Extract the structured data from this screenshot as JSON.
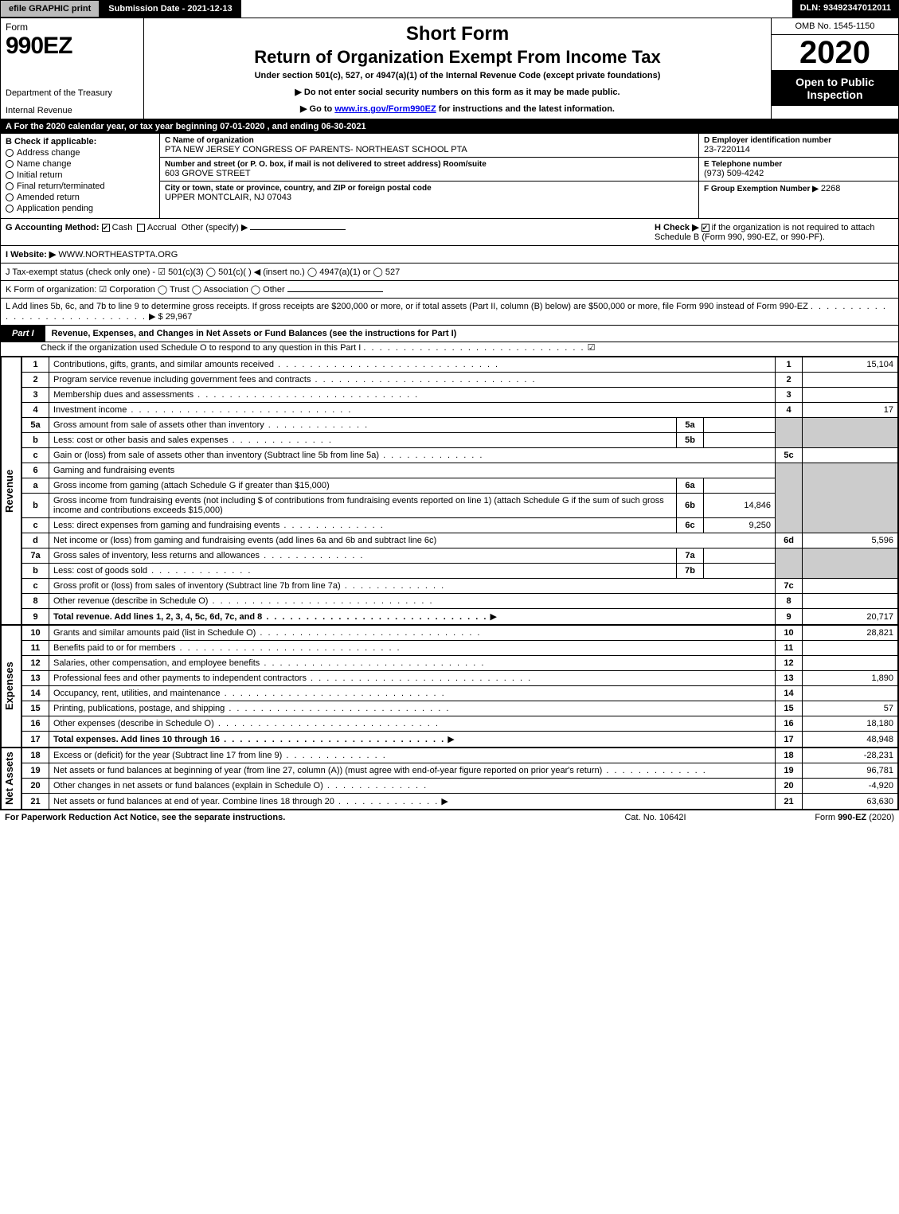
{
  "topbar": {
    "efile": "efile GRAPHIC print",
    "submission": "Submission Date - 2021-12-13",
    "dln": "DLN: 93492347012011"
  },
  "header": {
    "form_word": "Form",
    "form_number": "990EZ",
    "dept1": "Department of the Treasury",
    "dept2": "Internal Revenue",
    "title_short": "Short Form",
    "title_main": "Return of Organization Exempt From Income Tax",
    "subtext": "Under section 501(c), 527, or 4947(a)(1) of the Internal Revenue Code (except private foundations)",
    "arrow1": "▶ Do not enter social security numbers on this form as it may be made public.",
    "arrow2_pre": "▶ Go to ",
    "arrow2_link": "www.irs.gov/Form990EZ",
    "arrow2_post": " for instructions and the latest information.",
    "omb": "OMB No. 1545-1150",
    "year": "2020",
    "open": "Open to Public Inspection"
  },
  "lineA": "A For the 2020 calendar year, or tax year beginning 07-01-2020 , and ending 06-30-2021",
  "boxB": {
    "header": "B  Check if applicable:",
    "items": [
      "Address change",
      "Name change",
      "Initial return",
      "Final return/terminated",
      "Amended return",
      "Application pending"
    ]
  },
  "boxC": {
    "name_cap": "C Name of organization",
    "name": "PTA NEW JERSEY CONGRESS OF PARENTS- NORTHEAST SCHOOL PTA",
    "addr_cap": "Number and street (or P. O. box, if mail is not delivered to street address)    Room/suite",
    "addr": "603 GROVE STREET",
    "city_cap": "City or town, state or province, country, and ZIP or foreign postal code",
    "city": "UPPER MONTCLAIR, NJ  07043"
  },
  "boxD": {
    "d_cap": "D Employer identification number",
    "d_val": "23-7220114",
    "e_cap": "E Telephone number",
    "e_val": "(973) 509-4242",
    "f_cap": "F Group Exemption Number  ▶",
    "f_val": "2268"
  },
  "lineG": {
    "label": "G Accounting Method:",
    "cash": "Cash",
    "accrual": "Accrual",
    "other": "Other (specify) ▶",
    "h_label": "H  Check ▶",
    "h_text": "if the organization is not required to attach Schedule B (Form 990, 990-EZ, or 990-PF)."
  },
  "lineI": {
    "label": "I Website: ▶",
    "value": "WWW.NORTHEASTPTA.ORG"
  },
  "lineJ": "J Tax-exempt status (check only one) - ☑ 501(c)(3)  ◯ 501(c)(  ) ◀ (insert no.)  ◯ 4947(a)(1) or  ◯ 527",
  "lineK": "K Form of organization:  ☑ Corporation  ◯ Trust  ◯ Association  ◯ Other",
  "lineL": {
    "text": "L Add lines 5b, 6c, and 7b to line 9 to determine gross receipts. If gross receipts are $200,000 or more, or if total assets (Part II, column (B) below) are $500,000 or more, file Form 990 instead of Form 990-EZ",
    "amount": "▶ $ 29,967"
  },
  "part1": {
    "tab": "Part I",
    "title": "Revenue, Expenses, and Changes in Net Assets or Fund Balances (see the instructions for Part I)",
    "sub": "Check if the organization used Schedule O to respond to any question in this Part I",
    "checked": "☑"
  },
  "sections": {
    "revenue": "Revenue",
    "expenses": "Expenses",
    "netassets": "Net Assets"
  },
  "rows": {
    "r1": {
      "n": "1",
      "d": "Contributions, gifts, grants, and similar amounts received",
      "rn": "1",
      "v": "15,104"
    },
    "r2": {
      "n": "2",
      "d": "Program service revenue including government fees and contracts",
      "rn": "2",
      "v": ""
    },
    "r3": {
      "n": "3",
      "d": "Membership dues and assessments",
      "rn": "3",
      "v": ""
    },
    "r4": {
      "n": "4",
      "d": "Investment income",
      "rn": "4",
      "v": "17"
    },
    "r5a": {
      "n": "5a",
      "d": "Gross amount from sale of assets other than inventory",
      "in": "5a",
      "iv": ""
    },
    "r5b": {
      "n": "b",
      "d": "Less: cost or other basis and sales expenses",
      "in": "5b",
      "iv": ""
    },
    "r5c": {
      "n": "c",
      "d": "Gain or (loss) from sale of assets other than inventory (Subtract line 5b from line 5a)",
      "rn": "5c",
      "v": ""
    },
    "r6": {
      "n": "6",
      "d": "Gaming and fundraising events"
    },
    "r6a": {
      "n": "a",
      "d": "Gross income from gaming (attach Schedule G if greater than $15,000)",
      "in": "6a",
      "iv": ""
    },
    "r6b": {
      "n": "b",
      "d": "Gross income from fundraising events (not including $              of contributions from fundraising events reported on line 1) (attach Schedule G if the sum of such gross income and contributions exceeds $15,000)",
      "in": "6b",
      "iv": "14,846"
    },
    "r6c": {
      "n": "c",
      "d": "Less: direct expenses from gaming and fundraising events",
      "in": "6c",
      "iv": "9,250"
    },
    "r6d": {
      "n": "d",
      "d": "Net income or (loss) from gaming and fundraising events (add lines 6a and 6b and subtract line 6c)",
      "rn": "6d",
      "v": "5,596"
    },
    "r7a": {
      "n": "7a",
      "d": "Gross sales of inventory, less returns and allowances",
      "in": "7a",
      "iv": ""
    },
    "r7b": {
      "n": "b",
      "d": "Less: cost of goods sold",
      "in": "7b",
      "iv": ""
    },
    "r7c": {
      "n": "c",
      "d": "Gross profit or (loss) from sales of inventory (Subtract line 7b from line 7a)",
      "rn": "7c",
      "v": ""
    },
    "r8": {
      "n": "8",
      "d": "Other revenue (describe in Schedule O)",
      "rn": "8",
      "v": ""
    },
    "r9": {
      "n": "9",
      "d": "Total revenue. Add lines 1, 2, 3, 4, 5c, 6d, 7c, and 8",
      "rn": "9",
      "v": "20,717",
      "arrow": "▶",
      "bold": true
    },
    "r10": {
      "n": "10",
      "d": "Grants and similar amounts paid (list in Schedule O)",
      "rn": "10",
      "v": "28,821"
    },
    "r11": {
      "n": "11",
      "d": "Benefits paid to or for members",
      "rn": "11",
      "v": ""
    },
    "r12": {
      "n": "12",
      "d": "Salaries, other compensation, and employee benefits",
      "rn": "12",
      "v": ""
    },
    "r13": {
      "n": "13",
      "d": "Professional fees and other payments to independent contractors",
      "rn": "13",
      "v": "1,890"
    },
    "r14": {
      "n": "14",
      "d": "Occupancy, rent, utilities, and maintenance",
      "rn": "14",
      "v": ""
    },
    "r15": {
      "n": "15",
      "d": "Printing, publications, postage, and shipping",
      "rn": "15",
      "v": "57"
    },
    "r16": {
      "n": "16",
      "d": "Other expenses (describe in Schedule O)",
      "rn": "16",
      "v": "18,180"
    },
    "r17": {
      "n": "17",
      "d": "Total expenses. Add lines 10 through 16",
      "rn": "17",
      "v": "48,948",
      "arrow": "▶",
      "bold": true
    },
    "r18": {
      "n": "18",
      "d": "Excess or (deficit) for the year (Subtract line 17 from line 9)",
      "rn": "18",
      "v": "-28,231"
    },
    "r19": {
      "n": "19",
      "d": "Net assets or fund balances at beginning of year (from line 27, column (A)) (must agree with end-of-year figure reported on prior year's return)",
      "rn": "19",
      "v": "96,781"
    },
    "r20": {
      "n": "20",
      "d": "Other changes in net assets or fund balances (explain in Schedule O)",
      "rn": "20",
      "v": "-4,920"
    },
    "r21": {
      "n": "21",
      "d": "Net assets or fund balances at end of year. Combine lines 18 through 20",
      "rn": "21",
      "v": "63,630",
      "arrow": "▶"
    }
  },
  "footer": {
    "left": "For Paperwork Reduction Act Notice, see the separate instructions.",
    "mid": "Cat. No. 10642I",
    "right_pre": "Form ",
    "right_bold": "990-EZ",
    "right_post": " (2020)"
  },
  "colors": {
    "black": "#000000",
    "gray_btn": "#bbbbbb",
    "shade": "#cccccc",
    "link": "#0000ee"
  }
}
